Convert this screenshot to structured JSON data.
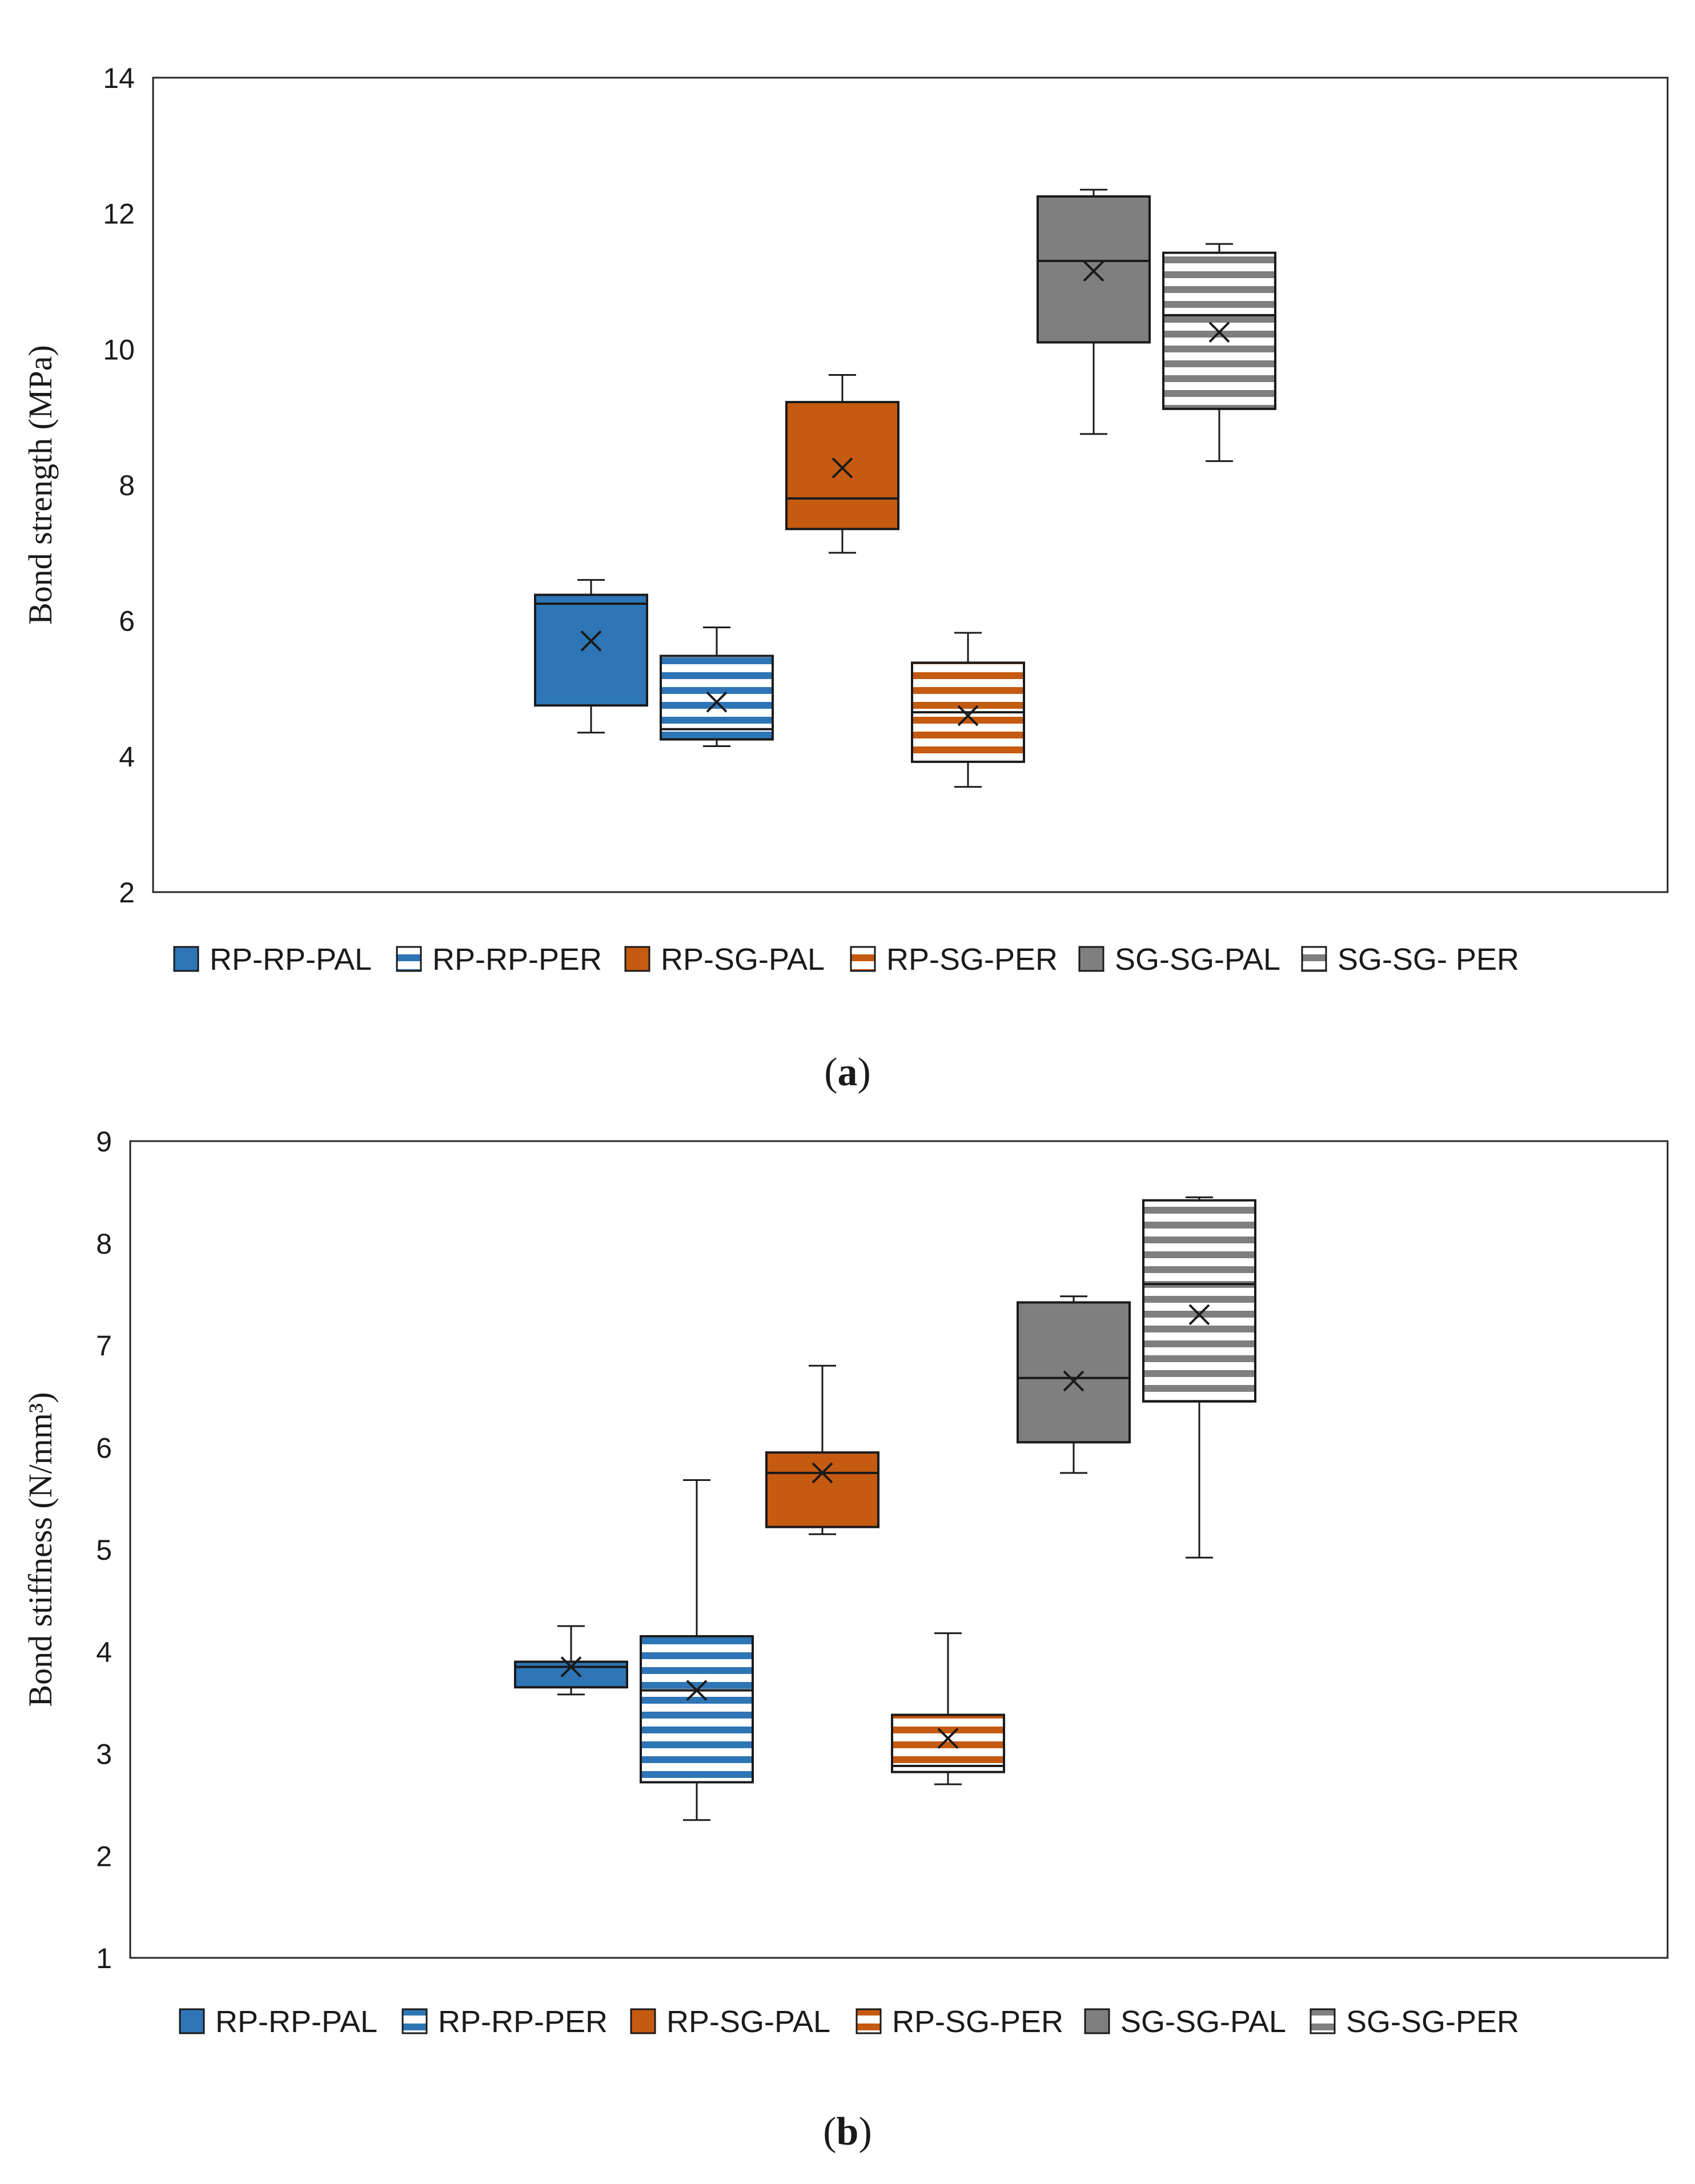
{
  "colors": {
    "blue": "#2e75b6",
    "orange": "#c55a11",
    "gray": "#7f7f7f",
    "frame": "#262626"
  },
  "chart_data": [
    {
      "type": "boxplot",
      "caption_letter": "a",
      "ylabel": "Bond strength (MPa)",
      "ylim": [
        2,
        14
      ],
      "yticks": [
        2,
        4,
        6,
        8,
        10,
        12,
        14
      ],
      "legend": [
        "RP-RP-PAL",
        "RP-RP-PER",
        "RP-SG-PAL",
        "RP-SG-PER",
        "SG-SG-PAL",
        "SG-SG- PER"
      ],
      "series": [
        {
          "name": "RP-RP-PAL",
          "color": "blue",
          "pattern": "solid",
          "min": 4.35,
          "q1": 4.75,
          "median": 6.25,
          "q3": 6.38,
          "max": 6.6,
          "mean": 5.7
        },
        {
          "name": "RP-RP-PER",
          "color": "blue",
          "pattern": "stripes",
          "min": 4.15,
          "q1": 4.25,
          "median": 4.4,
          "q3": 5.48,
          "max": 5.9,
          "mean": 4.8
        },
        {
          "name": "RP-SG-PAL",
          "color": "orange",
          "pattern": "solid",
          "min": 7.0,
          "q1": 7.35,
          "median": 7.8,
          "q3": 9.22,
          "max": 9.62,
          "mean": 8.25
        },
        {
          "name": "RP-SG-PER",
          "color": "orange",
          "pattern": "stripes",
          "min": 3.55,
          "q1": 3.92,
          "median": 4.65,
          "q3": 5.38,
          "max": 5.82,
          "mean": 4.6
        },
        {
          "name": "SG-SG-PAL",
          "color": "gray",
          "pattern": "solid",
          "min": 8.75,
          "q1": 10.1,
          "median": 11.3,
          "q3": 12.25,
          "max": 12.35,
          "mean": 11.15
        },
        {
          "name": "SG-SG- PER",
          "color": "gray",
          "pattern": "stripes",
          "min": 8.35,
          "q1": 9.12,
          "median": 10.5,
          "q3": 11.42,
          "max": 11.55,
          "mean": 10.25
        }
      ]
    },
    {
      "type": "boxplot",
      "caption_letter": "b",
      "ylabel": "Bond stiffness (N/mm³)",
      "ylim": [
        1,
        9
      ],
      "yticks": [
        1,
        2,
        3,
        4,
        5,
        6,
        7,
        8,
        9
      ],
      "legend": [
        "RP-RP-PAL",
        "RP-RP-PER",
        "RP-SG-PAL",
        "RP-SG-PER",
        "SG-SG-PAL",
        "SG-SG-PER"
      ],
      "series": [
        {
          "name": "RP-RP-PAL",
          "color": "blue",
          "pattern": "solid",
          "min": 3.58,
          "q1": 3.65,
          "median": 3.85,
          "q3": 3.9,
          "max": 4.25,
          "mean": 3.85
        },
        {
          "name": "RP-RP-PER",
          "color": "blue",
          "pattern": "stripes",
          "min": 2.35,
          "q1": 2.72,
          "median": 3.62,
          "q3": 4.15,
          "max": 5.68,
          "mean": 3.62
        },
        {
          "name": "RP-SG-PAL",
          "color": "orange",
          "pattern": "solid",
          "min": 5.15,
          "q1": 5.22,
          "median": 5.75,
          "q3": 5.95,
          "max": 6.8,
          "mean": 5.75
        },
        {
          "name": "RP-SG-PER",
          "color": "orange",
          "pattern": "stripes",
          "min": 2.7,
          "q1": 2.82,
          "median": 2.88,
          "q3": 3.38,
          "max": 4.18,
          "mean": 3.15
        },
        {
          "name": "SG-SG-PAL",
          "color": "gray",
          "pattern": "solid",
          "min": 5.75,
          "q1": 6.05,
          "median": 6.68,
          "q3": 7.42,
          "max": 7.48,
          "mean": 6.65
        },
        {
          "name": "SG-SG-PER",
          "color": "gray",
          "pattern": "stripes",
          "min": 4.92,
          "q1": 6.45,
          "median": 7.6,
          "q3": 8.42,
          "max": 8.45,
          "mean": 7.3
        }
      ]
    }
  ]
}
